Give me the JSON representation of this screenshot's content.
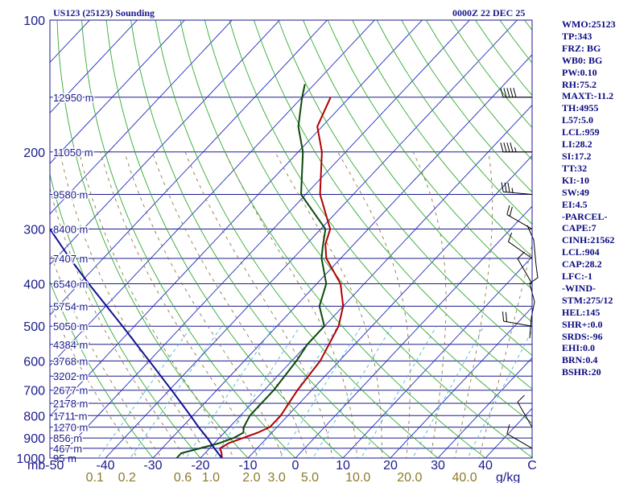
{
  "header": {
    "station": "US123 (25123) Sounding",
    "time": "0000Z 22 DEC 25"
  },
  "indices": [
    "WMO:25123",
    "TP:343",
    "FRZ: BG",
    "WB0: BG",
    "PW:0.10",
    "RH:75.2",
    "MAXT:-11.2",
    "TH:4955",
    "L57:5.0",
    "LCL:959",
    "LI:28.2",
    "SI:17.2",
    "TT:32",
    "KI:-10",
    "SW:49",
    "EI:4.5",
    "-PARCEL-",
    "CAPE:7",
    "CINH:21562",
    "LCL:904",
    "CAP:28.2",
    "LFC:-1",
    "-WIND-",
    "STM:275/12",
    "HEL:145",
    "SHR+:0.0",
    "SRDS:-96",
    "EHI:0.0",
    "BRN:0.4",
    "BSHR:20"
  ],
  "colors": {
    "isobar": "#1a1a8c",
    "isotherm": "#1f2bbd",
    "dry_adiabat": "#33aa33",
    "moist_adiabat": "#8c7a4a",
    "mixing_ratio": "#4fb0e0",
    "temperature": "#b00000",
    "dewpoint": "#0a4a0a",
    "parcel": "#101090",
    "wind_barbs": "#000000"
  },
  "chart_data": {
    "type": "line",
    "title": "",
    "y_axis": {
      "scale": "log-pressure",
      "unit": "mb",
      "range": [
        1000,
        100
      ]
    },
    "x_axis": {
      "unit": "°C",
      "range": [
        -50,
        50
      ]
    },
    "pressure_ticks": [
      100,
      200,
      300,
      400,
      500,
      600,
      700,
      800,
      900,
      1000
    ],
    "pressure_tick_labels": [
      "100",
      "200",
      "300",
      "400",
      "500",
      "600",
      "700",
      "800",
      "900",
      "1000"
    ],
    "temp_ticks": [
      -40,
      -30,
      -20,
      -10,
      0,
      10,
      20,
      30,
      40
    ],
    "temp_tick_labels": [
      "-40",
      "-30",
      "-20",
      "-10",
      "0",
      "10",
      "20",
      "30",
      "40"
    ],
    "axis_left_label": "mb-50",
    "axis_right_label": "C",
    "mixing_ratio_labels": [
      "0.1",
      "0.2",
      "0.6",
      "1.0",
      "2.0",
      "3.0",
      "5.0",
      "10.0",
      "20.0",
      "40.0"
    ],
    "mixing_ratio_values": [
      0.1,
      0.2,
      0.6,
      1.0,
      2.0,
      3.0,
      5.0,
      10.0,
      20.0,
      40.0
    ],
    "mixing_ratio_unit": "g/kg",
    "height_levels": [
      {
        "p": 150,
        "label": "12950 m"
      },
      {
        "p": 200,
        "label": "11050 m"
      },
      {
        "p": 250,
        "label": "9580 m"
      },
      {
        "p": 300,
        "label": "8400 m"
      },
      {
        "p": 350,
        "label": "7407 m"
      },
      {
        "p": 400,
        "label": "6540 m"
      },
      {
        "p": 450,
        "label": "5754 m"
      },
      {
        "p": 500,
        "label": "5050 m"
      },
      {
        "p": 550,
        "label": "4384 m"
      },
      {
        "p": 600,
        "label": "3768 m"
      },
      {
        "p": 650,
        "label": "3202 m"
      },
      {
        "p": 700,
        "label": "2677 m"
      },
      {
        "p": 750,
        "label": "2178 m"
      },
      {
        "p": 800,
        "label": "1711 m"
      },
      {
        "p": 850,
        "label": "1270 m"
      },
      {
        "p": 900,
        "label": "856 m"
      },
      {
        "p": 950,
        "label": "467 m"
      },
      {
        "p": 1000,
        "label": "95 m"
      }
    ],
    "series": [
      {
        "id": "temperature",
        "points": [
          [
            1000,
            -15.5
          ],
          [
            975,
            -16.5
          ],
          [
            950,
            -17.8
          ],
          [
            925,
            -17
          ],
          [
            900,
            -15
          ],
          [
            875,
            -13
          ],
          [
            850,
            -11.5
          ],
          [
            800,
            -11.5
          ],
          [
            700,
            -13
          ],
          [
            600,
            -14
          ],
          [
            500,
            -17
          ],
          [
            450,
            -20
          ],
          [
            400,
            -25
          ],
          [
            350,
            -33
          ],
          [
            325,
            -36
          ],
          [
            300,
            -38
          ],
          [
            250,
            -47
          ],
          [
            200,
            -55
          ],
          [
            175,
            -61
          ],
          [
            150,
            -64
          ]
        ]
      },
      {
        "id": "dewpoint",
        "points": [
          [
            1000,
            -25
          ],
          [
            975,
            -25
          ],
          [
            950,
            -22
          ],
          [
            925,
            -19
          ],
          [
            900,
            -17
          ],
          [
            875,
            -16
          ],
          [
            850,
            -17
          ],
          [
            800,
            -18
          ],
          [
            700,
            -18
          ],
          [
            600,
            -19
          ],
          [
            550,
            -20
          ],
          [
            500,
            -20
          ],
          [
            450,
            -25
          ],
          [
            400,
            -28
          ],
          [
            350,
            -34
          ],
          [
            330,
            -36
          ],
          [
            300,
            -39
          ],
          [
            250,
            -51
          ],
          [
            200,
            -59
          ],
          [
            175,
            -65
          ],
          [
            150,
            -70
          ],
          [
            140,
            -72
          ]
        ]
      },
      {
        "id": "parcel",
        "points": [
          [
            1000,
            -15.5
          ],
          [
            950,
            -19
          ],
          [
            900,
            -22.5
          ],
          [
            850,
            -26.5
          ],
          [
            800,
            -30.5
          ],
          [
            700,
            -39.5
          ],
          [
            600,
            -50
          ],
          [
            500,
            -62.5
          ],
          [
            400,
            -78
          ],
          [
            350,
            -87
          ],
          [
            300,
            -97
          ]
        ]
      }
    ],
    "wind_barbs": [
      {
        "p": 150,
        "dir": 270,
        "spd": 50
      },
      {
        "p": 200,
        "dir": 270,
        "spd": 45
      },
      {
        "p": 250,
        "dir": 275,
        "spd": 35
      },
      {
        "p": 300,
        "dir": 300,
        "spd": 20
      },
      {
        "p": 350,
        "dir": 305,
        "spd": 10
      },
      {
        "p": 400,
        "dir": 330,
        "spd": 10
      },
      {
        "p": 500,
        "dir": 280,
        "spd": 20
      },
      {
        "p": 850,
        "dir": 330,
        "spd": 10
      },
      {
        "p": 950,
        "dir": 300,
        "spd": 10
      }
    ]
  }
}
